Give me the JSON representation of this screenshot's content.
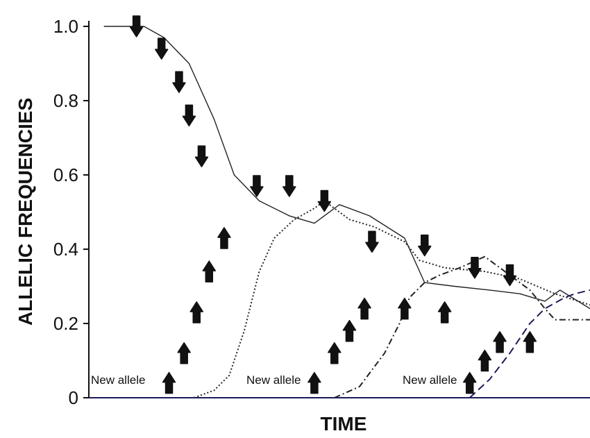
{
  "chart_data": {
    "type": "line",
    "title": "",
    "xlabel": "TIME",
    "ylabel": "ALLELIC FREQUENCIES",
    "ylim": [
      0,
      1
    ],
    "yticks": [
      "0",
      "0.2",
      "0.4",
      "0.6",
      "0.8",
      "1.0"
    ],
    "xlim": [
      0,
      100
    ],
    "grid": false,
    "legend": "none",
    "annotations": [
      "New allele",
      "New allele",
      "New allele"
    ],
    "series": [
      {
        "style": "solid",
        "x": [
          3,
          11,
          15,
          20,
          25,
          29,
          34,
          40,
          45,
          50,
          56,
          63,
          67,
          73,
          80,
          86,
          91,
          94,
          100
        ],
        "y": [
          1.0,
          1.0,
          0.97,
          0.9,
          0.75,
          0.6,
          0.53,
          0.49,
          0.47,
          0.52,
          0.49,
          0.43,
          0.31,
          0.3,
          0.29,
          0.28,
          0.26,
          0.29,
          0.24
        ]
      },
      {
        "style": "dotted",
        "x": [
          21,
          25,
          28,
          31,
          34,
          37,
          41,
          45,
          47,
          50,
          52,
          57,
          63,
          66,
          71,
          79,
          86,
          93,
          100
        ],
        "y": [
          0.0,
          0.02,
          0.06,
          0.18,
          0.34,
          0.43,
          0.48,
          0.51,
          0.53,
          0.5,
          0.48,
          0.46,
          0.42,
          0.37,
          0.35,
          0.34,
          0.32,
          0.28,
          0.25
        ]
      },
      {
        "style": "dash-dot",
        "x": [
          49,
          54,
          59,
          62,
          64,
          67,
          70,
          74,
          79,
          84,
          88,
          91,
          93,
          96,
          100
        ],
        "y": [
          0.0,
          0.03,
          0.12,
          0.2,
          0.27,
          0.31,
          0.33,
          0.35,
          0.38,
          0.33,
          0.29,
          0.24,
          0.21,
          0.21,
          0.21
        ]
      },
      {
        "style": "dashed",
        "x": [
          76,
          80,
          84,
          88,
          91,
          95,
          97,
          100
        ],
        "y": [
          0.0,
          0.05,
          0.12,
          0.2,
          0.24,
          0.27,
          0.28,
          0.29
        ]
      }
    ],
    "down_arrows": [
      {
        "x": 9.5,
        "y": 1.0
      },
      {
        "x": 14.5,
        "y": 0.94
      },
      {
        "x": 18,
        "y": 0.85
      },
      {
        "x": 20,
        "y": 0.76
      },
      {
        "x": 22.5,
        "y": 0.65
      },
      {
        "x": 33.5,
        "y": 0.57
      },
      {
        "x": 40,
        "y": 0.57
      },
      {
        "x": 47,
        "y": 0.53
      },
      {
        "x": 56.5,
        "y": 0.42
      },
      {
        "x": 67,
        "y": 0.41
      },
      {
        "x": 77,
        "y": 0.35
      },
      {
        "x": 84,
        "y": 0.33
      }
    ],
    "up_arrows": [
      {
        "x": 16,
        "y": 0.04
      },
      {
        "x": 19,
        "y": 0.12
      },
      {
        "x": 21.5,
        "y": 0.23
      },
      {
        "x": 24,
        "y": 0.34
      },
      {
        "x": 27,
        "y": 0.43
      },
      {
        "x": 45,
        "y": 0.04
      },
      {
        "x": 49,
        "y": 0.12
      },
      {
        "x": 52,
        "y": 0.18
      },
      {
        "x": 55,
        "y": 0.24
      },
      {
        "x": 63,
        "y": 0.24
      },
      {
        "x": 71,
        "y": 0.23
      },
      {
        "x": 76,
        "y": 0.04
      },
      {
        "x": 79,
        "y": 0.1
      },
      {
        "x": 82,
        "y": 0.15
      },
      {
        "x": 88,
        "y": 0.15
      }
    ]
  }
}
